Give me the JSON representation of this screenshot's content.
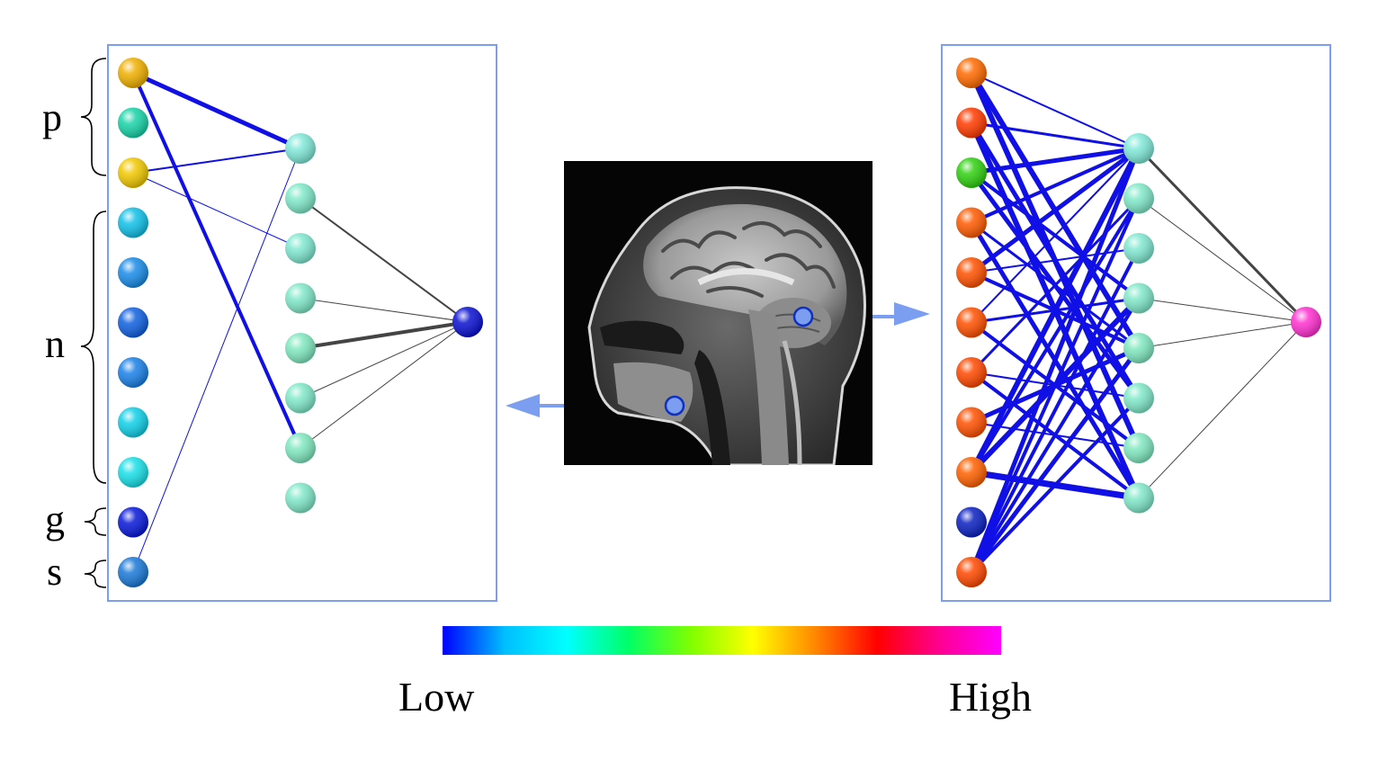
{
  "labels": {
    "groups": {
      "p": "p",
      "n": "n",
      "g": "g",
      "s": "s"
    },
    "scale_low": "Low",
    "scale_high": "High"
  },
  "colorbar": {
    "stops": [
      "#0000ff",
      "#00bfff",
      "#00ffff",
      "#00ff66",
      "#7fff00",
      "#ffff00",
      "#ff8800",
      "#ff0000",
      "#ff0090",
      "#ff00ff"
    ]
  },
  "colors": {
    "panel_border": "#7b9ef0",
    "edge_input": "#1010e6",
    "edge_output": "#444444",
    "pointer": "#7b9ef0"
  },
  "left_network": {
    "input_colors": [
      "#f0b000",
      "#18d3a8",
      "#f2c800",
      "#10c0e8",
      "#1a8ce8",
      "#1060e0",
      "#1a80e8",
      "#10d0e8",
      "#18e0e8",
      "#0818d8",
      "#1a78d8"
    ],
    "hidden_colors": [
      "#80e8d8",
      "#80e8c8",
      "#80e8d0",
      "#80e8c8",
      "#80e8c0",
      "#80e8c8",
      "#80e8c0",
      "#80e8c8"
    ],
    "output_color": "#0a10d0",
    "input_edges": [
      [
        0,
        0,
        5
      ],
      [
        0,
        6,
        4
      ],
      [
        2,
        0,
        2
      ],
      [
        2,
        2,
        1
      ],
      [
        10,
        0,
        1
      ]
    ],
    "output_edges": [
      [
        1,
        2
      ],
      [
        3,
        1
      ],
      [
        4,
        4
      ],
      [
        5,
        1
      ],
      [
        6,
        1
      ]
    ]
  },
  "right_network": {
    "input_colors": [
      "#ff6a00",
      "#ff3a00",
      "#30d010",
      "#ff5a00",
      "#ff5000",
      "#ff5000",
      "#ff4800",
      "#ff5000",
      "#ff6000",
      "#0a20c0",
      "#ff4800"
    ],
    "hidden_colors": [
      "#80e8d8",
      "#80e8c8",
      "#80e8d0",
      "#80e8c8",
      "#80e8c0",
      "#80e8c8",
      "#80e8c0",
      "#80e8c8"
    ],
    "output_color": "#ff30d0",
    "input_edges": [
      [
        0,
        0,
        2
      ],
      [
        0,
        4,
        6
      ],
      [
        0,
        6,
        6
      ],
      [
        1,
        0,
        3
      ],
      [
        1,
        5,
        5
      ],
      [
        1,
        7,
        6
      ],
      [
        2,
        0,
        5
      ],
      [
        2,
        3,
        4
      ],
      [
        2,
        5,
        5
      ],
      [
        3,
        0,
        4
      ],
      [
        3,
        4,
        3
      ],
      [
        3,
        7,
        5
      ],
      [
        4,
        0,
        5
      ],
      [
        4,
        2,
        2
      ],
      [
        4,
        4,
        4
      ],
      [
        5,
        0,
        2
      ],
      [
        5,
        3,
        3
      ],
      [
        5,
        6,
        4
      ],
      [
        6,
        1,
        3
      ],
      [
        6,
        5,
        2
      ],
      [
        6,
        7,
        4
      ],
      [
        7,
        4,
        5
      ],
      [
        7,
        6,
        2
      ],
      [
        8,
        0,
        6
      ],
      [
        8,
        1,
        4
      ],
      [
        8,
        3,
        6
      ],
      [
        8,
        7,
        7
      ],
      [
        10,
        0,
        5
      ],
      [
        10,
        1,
        4
      ],
      [
        10,
        2,
        4
      ],
      [
        10,
        3,
        4
      ],
      [
        10,
        4,
        5
      ],
      [
        10,
        5,
        4
      ]
    ],
    "output_edges": [
      [
        0,
        3
      ],
      [
        1,
        1
      ],
      [
        3,
        1
      ],
      [
        4,
        1
      ],
      [
        7,
        1
      ]
    ]
  }
}
